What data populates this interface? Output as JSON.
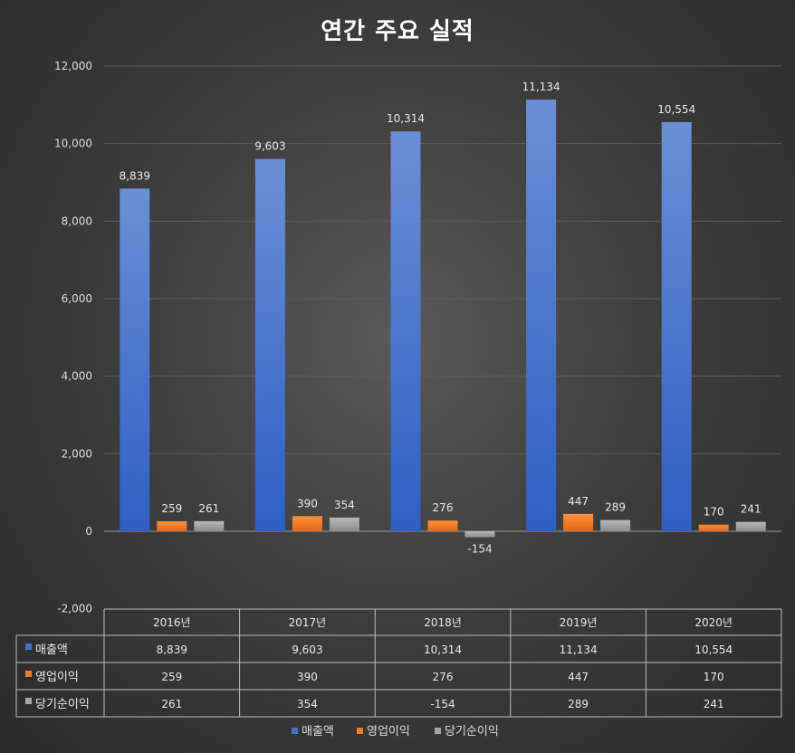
{
  "chart_data": {
    "type": "bar",
    "title": "연간 주요 실적",
    "categories": [
      "2016년",
      "2017년",
      "2018년",
      "2019년",
      "2020년"
    ],
    "ylim": [
      -2000,
      12000
    ],
    "yticks": [
      -2000,
      0,
      2000,
      4000,
      6000,
      8000,
      10000,
      12000
    ],
    "ytick_labels": [
      "-2,000",
      "0",
      "2,000",
      "4,000",
      "6,000",
      "8,000",
      "10,000",
      "12,000"
    ],
    "grid": true,
    "legend": "bottom",
    "data_table": true,
    "series": [
      {
        "name": "매출액",
        "values": [
          8839,
          9603,
          10314,
          11134,
          10554
        ],
        "labels": [
          "8,839",
          "9,603",
          "10,314",
          "11,134",
          "10,554"
        ],
        "color": "#4472C4"
      },
      {
        "name": "영업이익",
        "values": [
          259,
          390,
          276,
          447,
          170
        ],
        "labels": [
          "259",
          "390",
          "276",
          "447",
          "170"
        ],
        "color": "#ED7D31"
      },
      {
        "name": "당기순이익",
        "values": [
          261,
          354,
          -154,
          289,
          241
        ],
        "labels": [
          "261",
          "354",
          "-154",
          "289",
          "241"
        ],
        "color": "#A5A5A5"
      }
    ]
  }
}
